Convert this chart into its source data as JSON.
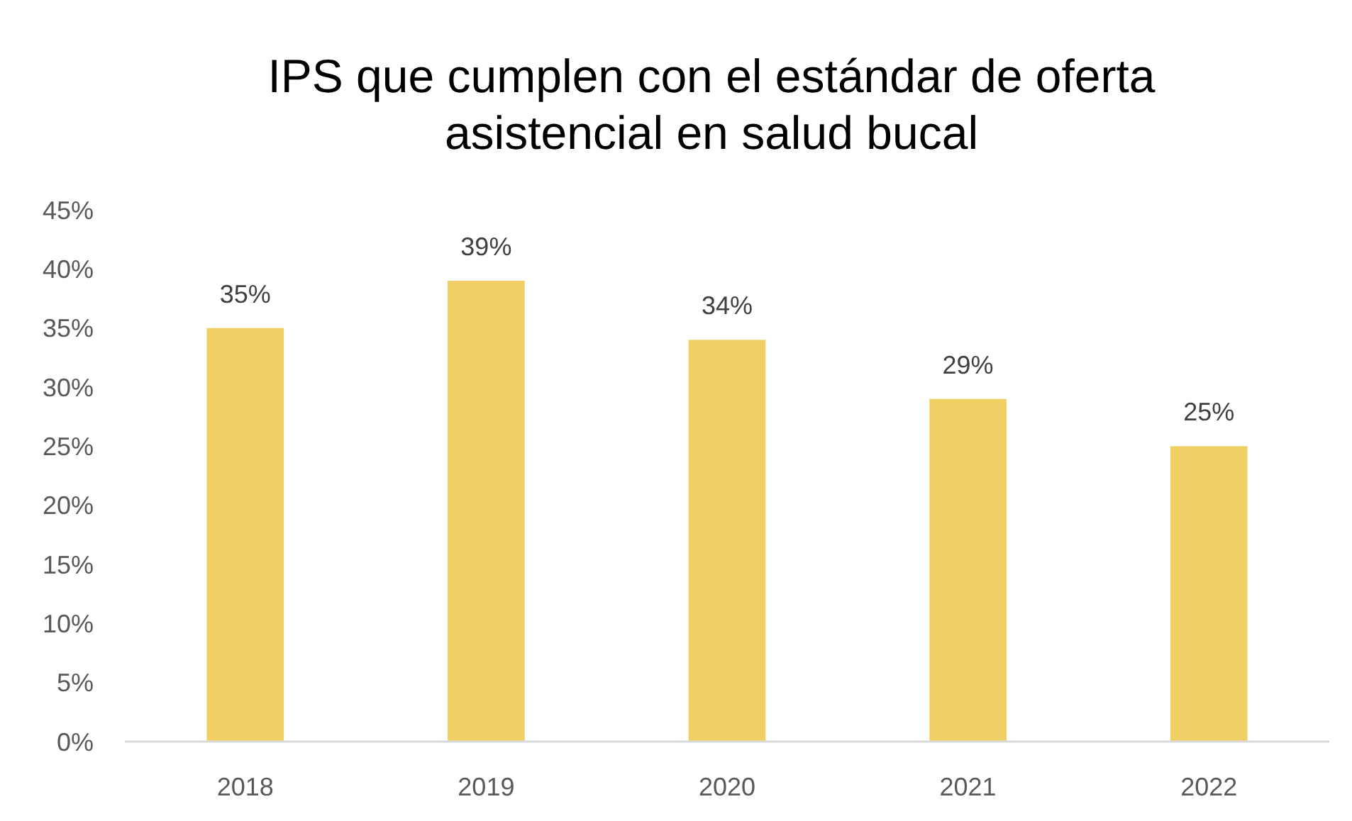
{
  "chart_data": {
    "type": "bar",
    "title": "IPS que cumplen con el estándar de oferta asistencial en salud bucal",
    "categories": [
      "2018",
      "2019",
      "2020",
      "2021",
      "2022"
    ],
    "values": [
      35,
      39,
      34,
      29,
      25
    ],
    "value_labels": [
      "35%",
      "39%",
      "34%",
      "29%",
      "25%"
    ],
    "color": "#f0d064",
    "ylim": [
      0,
      45
    ],
    "yticks": [
      {
        "value": 0,
        "label": "0%"
      },
      {
        "value": 5,
        "label": "5%"
      },
      {
        "value": 10,
        "label": "10%"
      },
      {
        "value": 15,
        "label": "15%"
      },
      {
        "value": 20,
        "label": "20%"
      },
      {
        "value": 25,
        "label": "25%"
      },
      {
        "value": 30,
        "label": "30%"
      },
      {
        "value": 35,
        "label": "35%"
      },
      {
        "value": 40,
        "label": "40%"
      },
      {
        "value": 45,
        "label": "45%"
      }
    ],
    "grid": false
  }
}
